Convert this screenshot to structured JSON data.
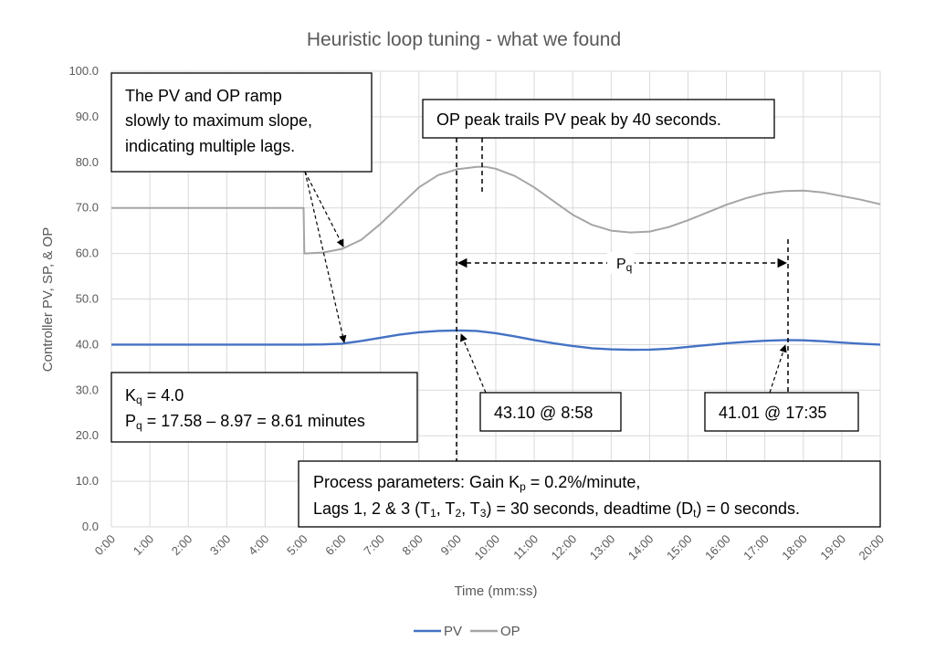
{
  "chart_data": {
    "type": "line",
    "title": "Heuristic loop tuning - what we found",
    "xlabel": "Time (mm:ss)",
    "ylabel": "Controller PV, SP, & OP",
    "xlim": [
      0,
      20
    ],
    "ylim": [
      0,
      100
    ],
    "grid": true,
    "legend_position": "bottom",
    "x_ticks": [
      "0:00",
      "1:00",
      "2:00",
      "3:00",
      "4:00",
      "5:00",
      "6:00",
      "7:00",
      "8:00",
      "9:00",
      "10:00",
      "11:00",
      "12:00",
      "13:00",
      "14:00",
      "15:00",
      "16:00",
      "17:00",
      "18:00",
      "19:00",
      "20:00"
    ],
    "y_ticks": [
      "0.0",
      "10.0",
      "20.0",
      "30.0",
      "40.0",
      "50.0",
      "60.0",
      "70.0",
      "80.0",
      "90.0",
      "100.0"
    ],
    "series": [
      {
        "name": "PV",
        "color": "#4472c4",
        "x": [
          0,
          5.0,
          5.5,
          6.0,
          6.5,
          7.0,
          7.5,
          8.0,
          8.5,
          8.97,
          9.5,
          10.0,
          10.5,
          11.0,
          11.5,
          12.0,
          12.5,
          13.0,
          13.5,
          14.0,
          14.5,
          15.0,
          15.5,
          16.0,
          16.5,
          17.0,
          17.58,
          18.0,
          18.5,
          19.0,
          19.5,
          20.0
        ],
        "y": [
          40.0,
          40.0,
          40.05,
          40.2,
          40.8,
          41.5,
          42.2,
          42.7,
          43.0,
          43.1,
          43.0,
          42.5,
          41.8,
          41.0,
          40.3,
          39.7,
          39.2,
          38.95,
          38.85,
          38.9,
          39.1,
          39.5,
          39.9,
          40.3,
          40.6,
          40.85,
          41.01,
          40.95,
          40.75,
          40.45,
          40.2,
          40.0
        ]
      },
      {
        "name": "OP",
        "color": "#a5a5a5",
        "x": [
          0,
          5.0,
          5.02,
          5.5,
          6.0,
          6.5,
          7.0,
          7.5,
          8.0,
          8.5,
          9.0,
          9.5,
          9.75,
          10.0,
          10.5,
          11.0,
          11.5,
          12.0,
          12.5,
          13.0,
          13.5,
          14.0,
          14.5,
          15.0,
          15.5,
          16.0,
          16.5,
          17.0,
          17.5,
          18.0,
          18.5,
          19.0,
          19.5,
          20.0
        ],
        "y": [
          70.0,
          70.0,
          60.0,
          60.2,
          61.0,
          63.0,
          66.5,
          70.5,
          74.5,
          77.2,
          78.5,
          79.0,
          79.0,
          78.6,
          77.0,
          74.5,
          71.5,
          68.5,
          66.3,
          65.0,
          64.6,
          64.8,
          65.8,
          67.3,
          69.0,
          70.7,
          72.1,
          73.2,
          73.7,
          73.8,
          73.4,
          72.6,
          71.8,
          70.8
        ]
      }
    ],
    "annotations": [
      {
        "lines": [
          "The PV and OP ramp",
          "slowly to maximum slope,",
          "indicating multiple lags."
        ]
      },
      {
        "lines": [
          "OP peak trails PV peak by 40 seconds."
        ]
      },
      {
        "lines": [
          "P<sub>q</sub>"
        ]
      },
      {
        "lines": [
          "K<sub>q</sub> = 4.0",
          "P<sub>q</sub> = 17.58 – 8.97 = 8.61 minutes"
        ]
      },
      {
        "lines": [
          "43.10 @ 8:58"
        ]
      },
      {
        "lines": [
          "41.01 @ 17:35"
        ]
      },
      {
        "lines": [
          "Process parameters: Gain K<sub>p</sub> = 0.2%/minute,",
          "Lags 1, 2 & 3 (T<sub>1</sub>, T<sub>2</sub>, T<sub>3</sub>) = 30 seconds, deadtime (D<sub>t</sub>) = 0 seconds."
        ]
      }
    ]
  }
}
